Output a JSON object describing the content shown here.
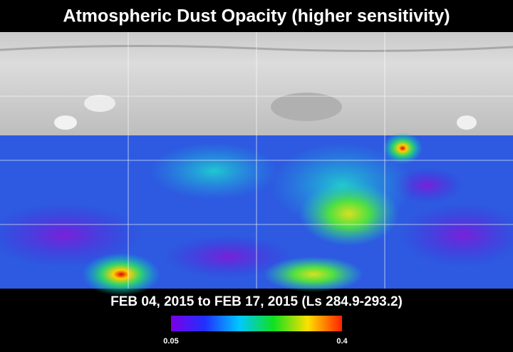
{
  "title": "Atmospheric Dust Opacity (higher sensitivity)",
  "subtitle": "FEB 04, 2015 to FEB 17, 2015 (Ls 284.9-293.2)",
  "colorbar": {
    "min": 0.05,
    "max": 0.4
  }
}
